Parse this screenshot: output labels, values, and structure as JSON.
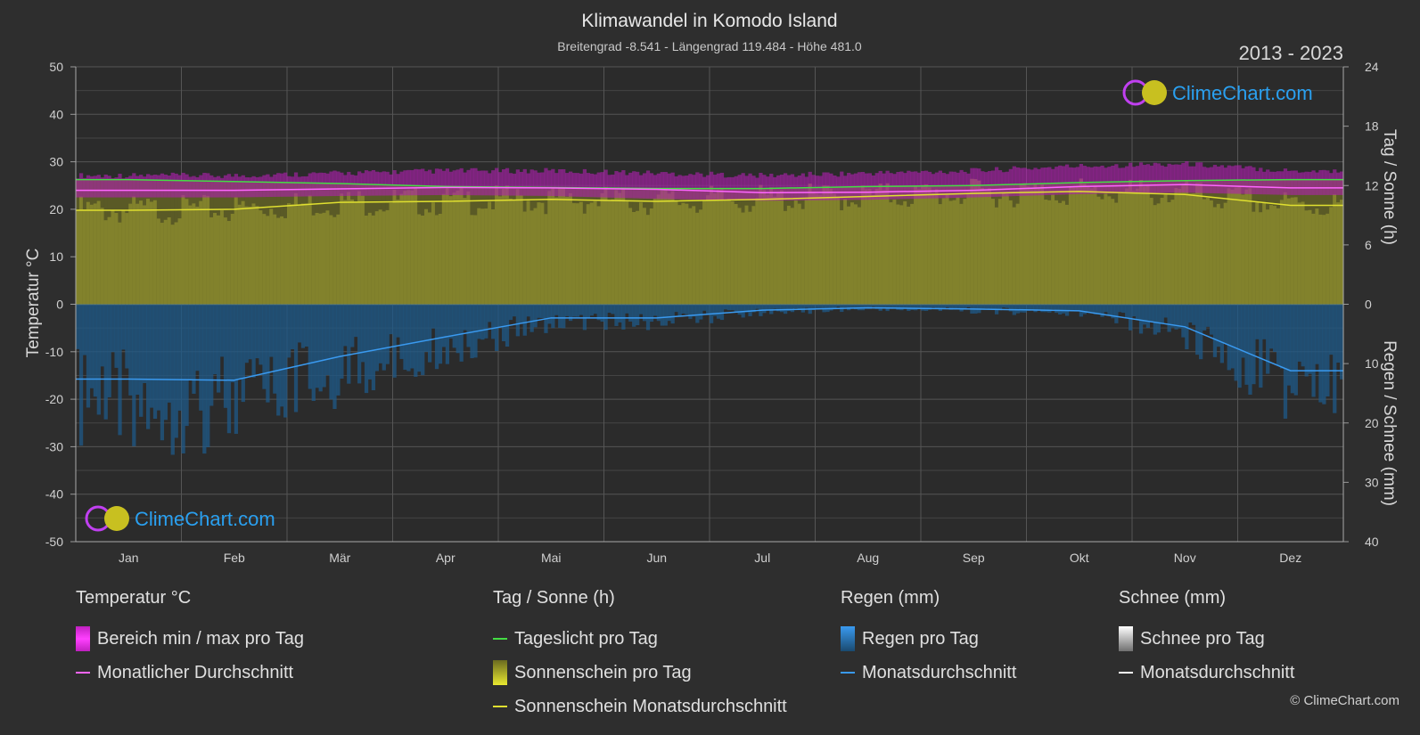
{
  "title": "Klimawandel in Komodo Island",
  "subtitle": "Breitengrad -8.541 - Längengrad 119.484 - Höhe 481.0",
  "year_range": "2013 - 2023",
  "brand": "ClimeChart.com",
  "copyright": "© ClimeChart.com",
  "colors": {
    "background": "#2e2e2e",
    "temp_range": "#c020c0",
    "temp_avg": "#ff66ff",
    "daylight": "#44dd44",
    "sunshine_fill": "#8f8f30",
    "sunshine_avg": "#e0e030",
    "rain": "#2a7fc0",
    "rain_avg": "#3a9af0",
    "snow": "#ffffff",
    "brand_text": "#2aa0f0"
  },
  "chart_data": {
    "type": "area",
    "categories": [
      "Jan",
      "Feb",
      "Mär",
      "Apr",
      "Mai",
      "Jun",
      "Jul",
      "Aug",
      "Sep",
      "Okt",
      "Nov",
      "Dez"
    ],
    "y_left": {
      "label": "Temperatur °C",
      "ticks": [
        50,
        40,
        30,
        20,
        10,
        0,
        -10,
        -20,
        -30,
        -40,
        -50
      ],
      "ylim": [
        -50,
        50
      ]
    },
    "y_right_top": {
      "label": "Tag / Sonne (h)",
      "ticks": [
        24,
        18,
        12,
        6,
        0
      ],
      "ylim": [
        0,
        24
      ]
    },
    "y_right_bottom": {
      "label": "Regen / Schnee (mm)",
      "ticks": [
        0,
        10,
        20,
        30,
        40
      ],
      "ylim": [
        0,
        40
      ]
    },
    "grid": true,
    "series": [
      {
        "name": "Tageslicht pro Tag",
        "axis": "sun_h",
        "values": [
          12.6,
          12.4,
          12.2,
          11.9,
          11.8,
          11.7,
          11.7,
          11.9,
          12.0,
          12.3,
          12.5,
          12.6
        ]
      },
      {
        "name": "Monatlicher Durchschnitt",
        "axis": "temp_c",
        "values": [
          24.0,
          24.0,
          24.3,
          24.6,
          24.5,
          24.2,
          23.5,
          23.6,
          24.0,
          24.8,
          25.2,
          24.5
        ]
      },
      {
        "name": "Bereich min / max pro Tag",
        "axis": "temp_c",
        "min": [
          22.5,
          22.5,
          22.8,
          23.0,
          22.8,
          22.2,
          21.8,
          22.0,
          22.5,
          23.2,
          23.5,
          23.0
        ],
        "max": [
          26.5,
          26.5,
          27.0,
          27.5,
          27.5,
          27.0,
          26.5,
          27.0,
          27.5,
          28.5,
          29.0,
          27.5
        ]
      },
      {
        "name": "Sonnenschein Monatsdurchschnitt",
        "axis": "sun_h",
        "values": [
          9.5,
          9.6,
          10.3,
          10.4,
          10.6,
          10.4,
          10.6,
          10.9,
          11.2,
          11.4,
          11.1,
          10.0
        ]
      },
      {
        "name": "Monatsdurchschnitt",
        "axis": "rain_mm",
        "values": [
          12.6,
          12.8,
          8.8,
          5.5,
          2.3,
          2.3,
          1.0,
          0.6,
          0.8,
          1.1,
          3.8,
          11.2
        ]
      }
    ]
  },
  "legend": {
    "temperature": {
      "header": "Temperatur °C",
      "items": [
        "Bereich min / max pro Tag",
        "Monatlicher Durchschnitt"
      ]
    },
    "sun": {
      "header": "Tag / Sonne (h)",
      "items": [
        "Tageslicht pro Tag",
        "Sonnenschein pro Tag",
        "Sonnenschein Monatsdurchschnitt"
      ]
    },
    "rain": {
      "header": "Regen (mm)",
      "items": [
        "Regen pro Tag",
        "Monatsdurchschnitt"
      ]
    },
    "snow": {
      "header": "Schnee (mm)",
      "items": [
        "Schnee pro Tag",
        "Monatsdurchschnitt"
      ]
    }
  }
}
